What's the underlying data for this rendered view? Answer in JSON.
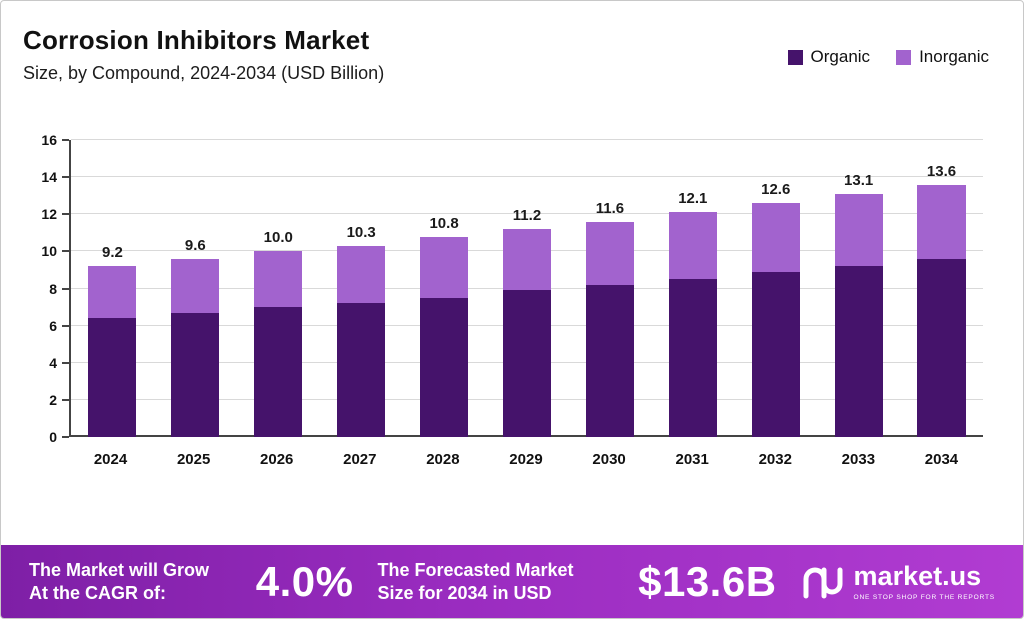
{
  "header": {
    "title": "Corrosion Inhibitors Market",
    "subtitle": "Size, by Compound, 2024-2034 (USD Billion)"
  },
  "legend": {
    "organic_label": "Organic",
    "inorganic_label": "Inorganic"
  },
  "colors": {
    "organic": "#45136b",
    "inorganic": "#a263ce",
    "banner_gradient_start": "#7e1fa6",
    "banner_gradient_end": "#b13cd2"
  },
  "chart_data": {
    "type": "bar",
    "stacked": true,
    "title": "Corrosion Inhibitors Market Size, by Compound, 2024-2034 (USD Billion)",
    "categories": [
      "2024",
      "2025",
      "2026",
      "2027",
      "2028",
      "2029",
      "2030",
      "2031",
      "2032",
      "2033",
      "2034"
    ],
    "series": [
      {
        "name": "Organic",
        "values": [
          6.4,
          6.7,
          7.0,
          7.2,
          7.5,
          7.9,
          8.2,
          8.5,
          8.9,
          9.2,
          9.6
        ]
      },
      {
        "name": "Inorganic",
        "values": [
          2.8,
          2.9,
          3.0,
          3.1,
          3.3,
          3.3,
          3.4,
          3.6,
          3.7,
          3.9,
          4.0
        ]
      }
    ],
    "totals": [
      9.2,
      9.6,
      10.0,
      10.3,
      10.8,
      11.2,
      11.6,
      12.1,
      12.6,
      13.1,
      13.6
    ],
    "xlabel": "",
    "ylabel": "",
    "ylim": [
      0,
      16
    ],
    "yticks": [
      0,
      2,
      4,
      6,
      8,
      10,
      12,
      14,
      16
    ],
    "grid": true,
    "legend_position": "top-right"
  },
  "banner": {
    "cagr_label": "The Market will Grow At the CAGR of:",
    "cagr_value": "4.0%",
    "forecast_label": "The Forecasted Market Size for 2034 in USD",
    "forecast_value": "$13.6B",
    "brand": "market.us",
    "tagline": "ONE STOP SHOP FOR THE REPORTS"
  }
}
